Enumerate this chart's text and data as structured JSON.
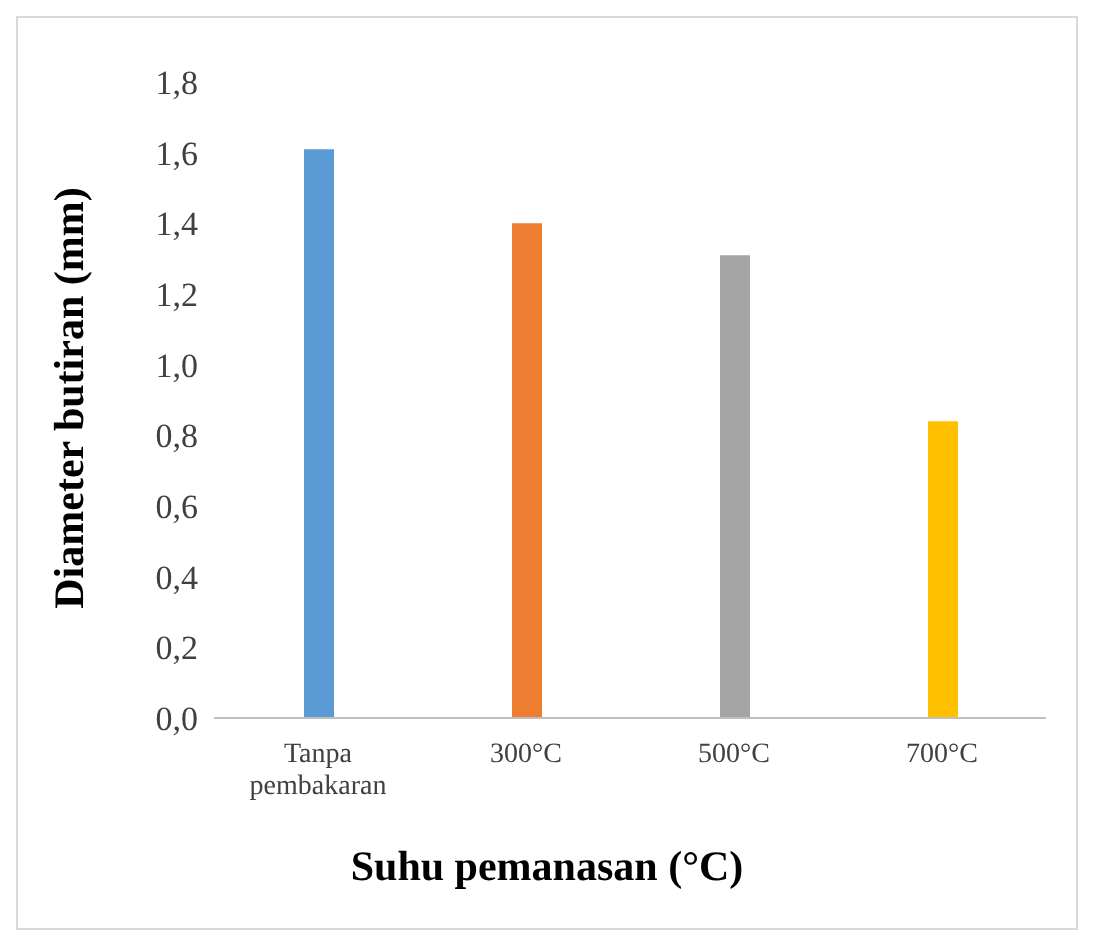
{
  "chart_data": {
    "type": "bar",
    "xlabel": "Suhu pemanasan (°C)",
    "ylabel": "Diameter butiran (mm)",
    "categories": [
      "Tanpa pembakaran",
      "300°C",
      "500°C",
      "700°C"
    ],
    "values": [
      1.61,
      1.4,
      1.31,
      0.84
    ],
    "colors": [
      "#5b9bd5",
      "#ed7d31",
      "#a5a5a5",
      "#ffc000"
    ],
    "ylim": [
      0,
      1.8
    ],
    "yticks": [
      {
        "value": 0,
        "label": "0,0"
      },
      {
        "value": 0.2,
        "label": "0,2"
      },
      {
        "value": 0.4,
        "label": "0,4"
      },
      {
        "value": 0.6,
        "label": "0,6"
      },
      {
        "value": 0.8,
        "label": "0,8"
      },
      {
        "value": 1,
        "label": "1,0"
      },
      {
        "value": 1.2,
        "label": "1,2"
      },
      {
        "value": 1.4,
        "label": "1,4"
      },
      {
        "value": 1.6,
        "label": "1,6"
      },
      {
        "value": 1.8,
        "label": "1,8"
      }
    ],
    "grid": false,
    "legend": false
  }
}
